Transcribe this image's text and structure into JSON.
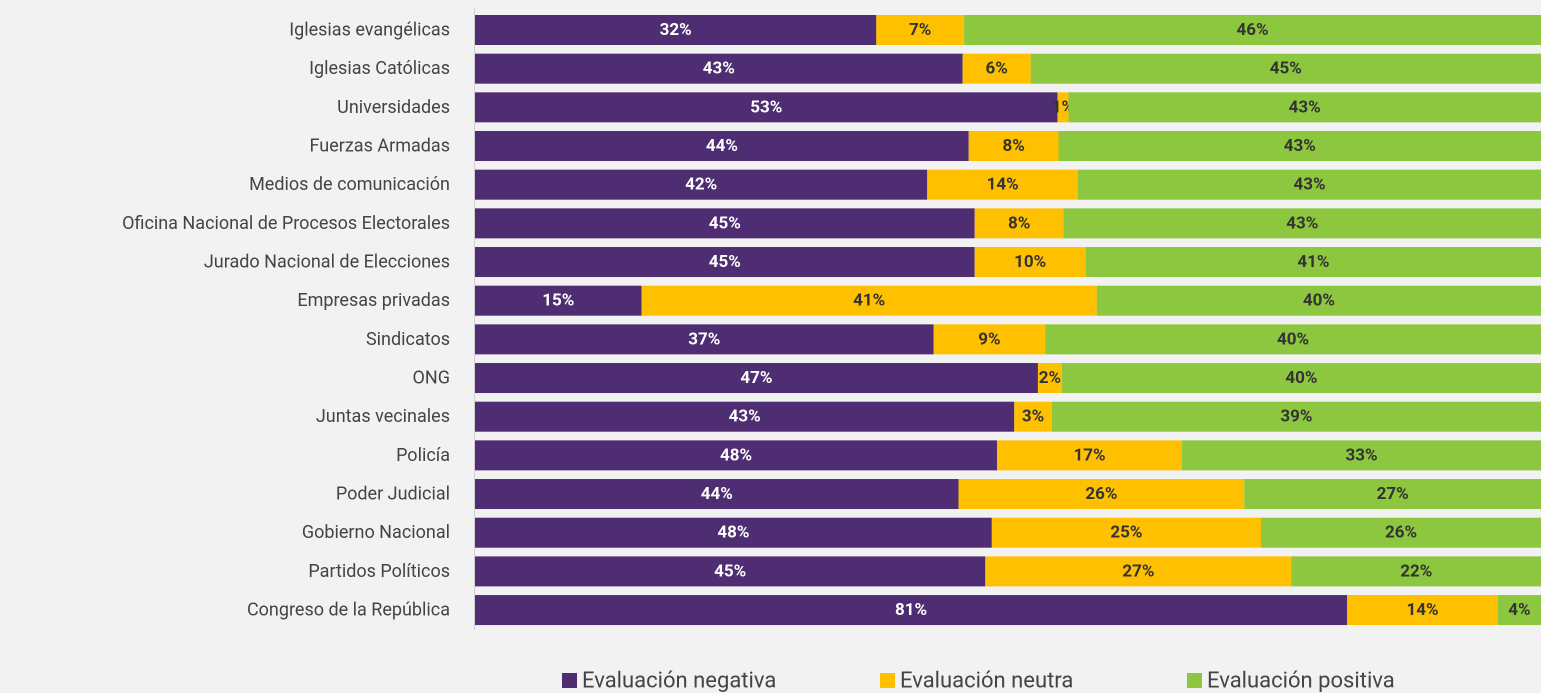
{
  "chart_data": {
    "type": "stacked-bar-100",
    "categories": [
      "Iglesias evangélicas",
      "Iglesias Católicas",
      "Universidades",
      "Fuerzas Armadas",
      "Medios de comunicación",
      "Oficina Nacional de Procesos Electorales",
      "Jurado Nacional de Elecciones",
      "Empresas privadas",
      "Sindicatos",
      "ONG",
      "Juntas vecinales",
      "Policía",
      "Poder Judicial",
      "Gobierno Nacional",
      "Partidos Políticos",
      "Congreso de la República"
    ],
    "series": [
      {
        "name": "Evaluación negativa",
        "color": "#4e2d72",
        "values": [
          32,
          43,
          53,
          44,
          42,
          45,
          45,
          15,
          37,
          47,
          43,
          48,
          44,
          48,
          45,
          81
        ],
        "value_labels": [
          "32%",
          "43%",
          "53%",
          "44%",
          "42%",
          "45%",
          "45%",
          "15%",
          "37%",
          "47%",
          "43%",
          "48%",
          "44%",
          "48%",
          "45%",
          "81%"
        ]
      },
      {
        "name": "Evaluación neutra",
        "color": "#ffc000",
        "values": [
          7,
          6,
          1,
          8,
          14,
          8,
          10,
          41,
          9,
          2,
          3,
          17,
          26,
          25,
          27,
          14
        ],
        "value_labels": [
          "7%",
          "6%",
          "1%",
          "8%",
          "14%",
          "8%",
          "10%",
          "41%",
          "9%",
          "2%",
          "3%",
          "17%",
          "26%",
          "25%",
          "27%",
          "14%"
        ]
      },
      {
        "name": "Evaluación positiva",
        "color": "#8dc63f",
        "values": [
          46,
          45,
          43,
          43,
          43,
          43,
          41,
          40,
          40,
          40,
          39,
          33,
          27,
          26,
          22,
          4
        ],
        "value_labels": [
          "46%",
          "45%",
          "43%",
          "43%",
          "43%",
          "43%",
          "41%",
          "40%",
          "40%",
          "40%",
          "39%",
          "33%",
          "27%",
          "26%",
          "22%",
          "4%"
        ]
      }
    ]
  }
}
